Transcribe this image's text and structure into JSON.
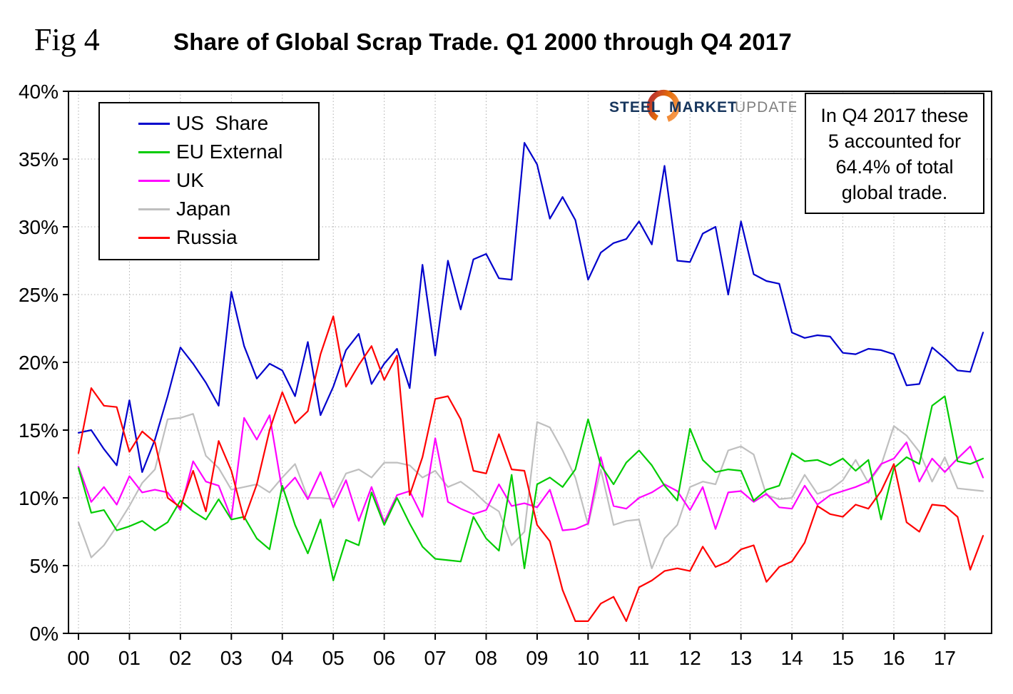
{
  "figure": {
    "label": "Fig 4",
    "title": "Share of Global Scrap Trade. Q1 2000 through Q4 2017"
  },
  "logo": {
    "word1": "STEEL",
    "word2": "MARKET",
    "word3": "UPDATE"
  },
  "annotation": {
    "lines": [
      "In Q4 2017 these",
      "5 accounted for",
      "64.4% of total",
      "global trade."
    ]
  },
  "chart_data": {
    "type": "line",
    "title": "Share of Global Scrap Trade. Q1 2000 through Q4 2017",
    "xlabel": "",
    "ylabel": "",
    "x_unit": "quarters, Q1 2000 - Q4 2017",
    "x_tick_labels": [
      "00",
      "01",
      "02",
      "03",
      "04",
      "05",
      "06",
      "07",
      "08",
      "09",
      "10",
      "11",
      "12",
      "13",
      "14",
      "15",
      "16",
      "17"
    ],
    "ylim": [
      0,
      40
    ],
    "y_step": 5,
    "y_tick_format": "percent",
    "grid": true,
    "legend_position": "top-left",
    "draw_order": [
      3,
      2,
      1,
      0,
      4
    ],
    "series": [
      {
        "name": "US  Share",
        "color": "#0000cc",
        "values": [
          14.8,
          15.0,
          13.6,
          12.4,
          17.2,
          11.9,
          14.3,
          17.5,
          21.1,
          19.9,
          18.5,
          16.8,
          25.2,
          21.2,
          18.8,
          19.9,
          19.4,
          17.5,
          21.5,
          16.1,
          18.2,
          20.9,
          22.1,
          18.4,
          19.9,
          21.0,
          18.1,
          27.2,
          20.5,
          27.5,
          23.9,
          27.6,
          28.0,
          26.2,
          26.1,
          36.2,
          34.6,
          30.6,
          32.2,
          30.5,
          26.1,
          28.1,
          28.8,
          29.1,
          30.4,
          28.7,
          34.5,
          27.5,
          27.4,
          29.5,
          30.0,
          25.0,
          30.4,
          26.5,
          26.0,
          25.8,
          22.2,
          21.8,
          22.0,
          21.9,
          20.7,
          20.6,
          21.0,
          20.9,
          20.6,
          18.3,
          18.4,
          21.1,
          20.3,
          19.4,
          19.3,
          22.2
        ]
      },
      {
        "name": "EU External",
        "color": "#00cc00",
        "values": [
          12.2,
          8.9,
          9.1,
          7.6,
          7.9,
          8.3,
          7.6,
          8.2,
          9.8,
          9.0,
          8.4,
          9.9,
          8.4,
          8.6,
          7.0,
          6.2,
          10.9,
          8.0,
          5.9,
          8.4,
          3.9,
          6.9,
          6.5,
          10.4,
          8.0,
          10.0,
          8.1,
          6.4,
          5.5,
          5.4,
          5.3,
          8.6,
          7.0,
          6.1,
          11.7,
          4.8,
          11.0,
          11.5,
          10.8,
          12.1,
          15.8,
          12.4,
          11.0,
          12.6,
          13.5,
          12.4,
          10.9,
          9.8,
          15.1,
          12.8,
          11.9,
          12.1,
          12.0,
          9.8,
          10.6,
          10.9,
          13.3,
          12.7,
          12.8,
          12.4,
          12.9,
          12.0,
          12.8,
          8.4,
          12.2,
          13.0,
          12.5,
          16.8,
          17.5,
          12.7,
          12.5,
          12.9
        ]
      },
      {
        "name": "UK",
        "color": "#ff00ff",
        "values": [
          12.3,
          9.7,
          10.8,
          9.5,
          11.6,
          10.4,
          10.6,
          10.4,
          9.1,
          12.7,
          11.2,
          10.9,
          8.5,
          15.9,
          14.3,
          16.1,
          10.5,
          11.5,
          9.9,
          11.9,
          9.3,
          11.3,
          8.3,
          10.8,
          8.2,
          10.2,
          10.5,
          8.6,
          14.4,
          9.7,
          9.2,
          8.8,
          9.1,
          11.0,
          9.4,
          9.6,
          9.3,
          10.6,
          7.6,
          7.7,
          8.1,
          13.0,
          9.4,
          9.2,
          10.0,
          10.4,
          11.0,
          10.5,
          9.1,
          10.8,
          7.7,
          10.4,
          10.5,
          9.7,
          10.3,
          9.3,
          9.2,
          10.9,
          9.5,
          10.2,
          10.5,
          10.8,
          11.2,
          12.5,
          12.9,
          14.1,
          11.2,
          12.9,
          11.9,
          12.9,
          13.8,
          11.5
        ]
      },
      {
        "name": "Japan",
        "color": "#bfbfbf",
        "values": [
          8.2,
          5.6,
          6.5,
          7.9,
          9.4,
          11.1,
          12.1,
          15.8,
          15.9,
          16.2,
          13.1,
          12.2,
          10.6,
          10.8,
          11.0,
          10.4,
          11.5,
          12.5,
          10.0,
          10.0,
          9.9,
          11.8,
          12.1,
          11.5,
          12.6,
          12.6,
          12.4,
          11.5,
          12.0,
          10.8,
          11.2,
          10.5,
          9.6,
          9.0,
          6.5,
          7.5,
          15.6,
          15.2,
          13.5,
          11.5,
          8.0,
          12.1,
          8.0,
          8.3,
          8.4,
          4.8,
          7.0,
          8.0,
          10.8,
          11.2,
          11.0,
          13.5,
          13.8,
          13.2,
          10.2,
          9.9,
          10.0,
          11.7,
          10.3,
          10.6,
          11.3,
          12.8,
          11.1,
          12.4,
          15.3,
          14.6,
          13.4,
          11.2,
          13.0,
          10.7,
          10.6,
          10.5
        ]
      },
      {
        "name": "Russia",
        "color": "#ff0000",
        "values": [
          13.3,
          18.1,
          16.8,
          16.7,
          13.4,
          14.9,
          14.1,
          10.0,
          9.3,
          12.0,
          9.0,
          14.2,
          12.0,
          8.4,
          11.0,
          15.0,
          17.8,
          15.5,
          16.4,
          20.6,
          23.4,
          18.2,
          19.8,
          21.2,
          18.7,
          20.5,
          10.2,
          13.0,
          17.3,
          17.5,
          15.8,
          12.0,
          11.8,
          14.7,
          12.1,
          12.0,
          8.0,
          6.8,
          3.2,
          0.9,
          0.9,
          2.2,
          2.7,
          0.9,
          3.4,
          3.9,
          4.6,
          4.8,
          4.6,
          6.4,
          4.9,
          5.3,
          6.2,
          6.5,
          3.8,
          4.9,
          5.3,
          6.7,
          9.4,
          8.8,
          8.6,
          9.5,
          9.2,
          10.5,
          12.5,
          8.2,
          7.5,
          9.5,
          9.4,
          8.6,
          4.7,
          7.2
        ]
      }
    ]
  }
}
